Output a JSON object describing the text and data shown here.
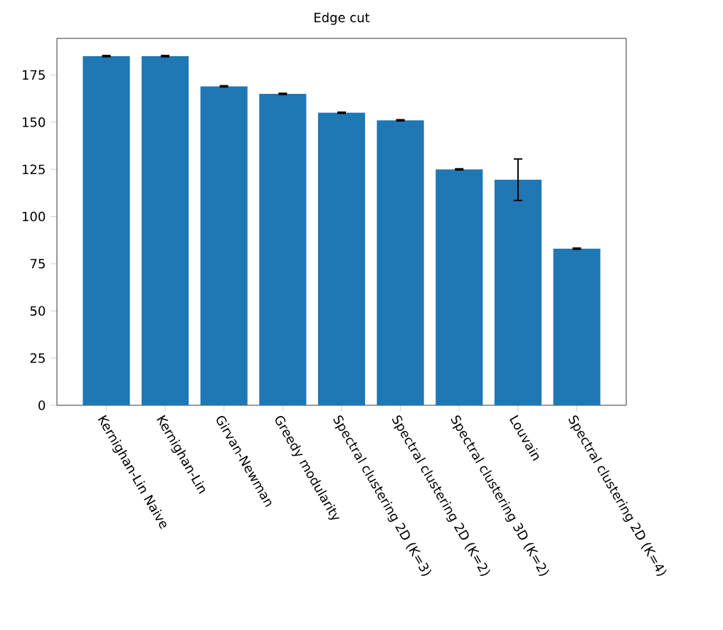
{
  "chart_data": {
    "type": "bar",
    "title": "Edge cut",
    "categories": [
      "Kernighan-Lin Naive",
      "Kernighan-Lin",
      "Girvan-Newman",
      "Greedy modularity",
      "Spectral clustering 2D (K=3)",
      "Spectral clustering 2D (K=2)",
      "Spectral clustering 3D (K=2)",
      "Louvain",
      "Spectral clustering 2D (K=4)"
    ],
    "values": [
      185,
      185,
      169,
      165,
      155,
      151,
      125,
      119.5,
      83
    ],
    "errors": [
      0.3,
      0.3,
      0.3,
      0.3,
      0.3,
      0.3,
      0.3,
      11,
      0.3
    ],
    "color": "#1f77b4",
    "ylim": [
      0,
      194.4
    ],
    "yticks": [
      0,
      25,
      50,
      75,
      100,
      125,
      150,
      175
    ],
    "grid": false
  }
}
